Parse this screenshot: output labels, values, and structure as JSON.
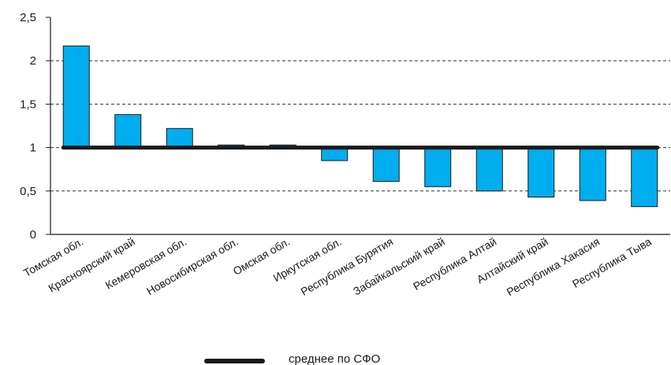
{
  "chart_data": {
    "type": "bar",
    "baseline": 1,
    "categories": [
      "Томская обл.",
      "Красноярский край",
      "Кемеровская обл.",
      "Новосибирская обл.",
      "Омская обл.",
      "Иркутская обл.",
      "Республика Бурятия",
      "Забайкальский край",
      "Республика Алтай",
      "Алтайский край",
      "Республика Хакасия",
      "Республика Тыва"
    ],
    "values": [
      2.17,
      1.38,
      1.22,
      1.03,
      1.03,
      0.85,
      0.61,
      0.55,
      0.5,
      0.43,
      0.39,
      0.32
    ],
    "ylim": [
      0,
      2.5
    ],
    "yticks": [
      0,
      0.5,
      1,
      1.5,
      2,
      2.5
    ],
    "ytick_labels": [
      "0",
      "0,5",
      "1",
      "1,5",
      "2",
      "2,5"
    ],
    "grid": "dashed horizontal",
    "average": {
      "name": "среднее по СФО",
      "value": 1
    },
    "legend_position": "bottom-center",
    "bar_color": "#00AEEF",
    "bar_stroke": "#1a1a1a",
    "average_color": "#1a1a1a"
  }
}
